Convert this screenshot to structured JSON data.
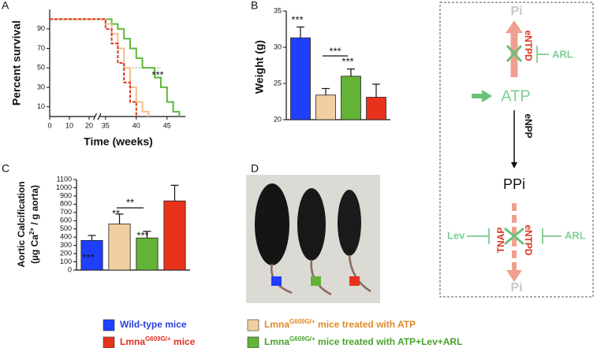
{
  "chart_data": [
    {
      "type": "step",
      "label": "A",
      "ylabel": "Percent survival",
      "xlabel": "Time (weeks)",
      "xlim": [
        0,
        48
      ],
      "xbreak": [
        23,
        34
      ],
      "xticks": [
        0,
        10,
        20,
        35,
        40,
        45
      ],
      "ylim": [
        0,
        110
      ],
      "yticks": [
        10,
        30,
        50,
        70,
        90
      ],
      "series": [
        {
          "color": "#5cb83a",
          "dashed": false,
          "x": [
            0,
            36,
            37,
            38,
            39,
            40,
            41,
            42,
            43,
            44,
            45,
            46,
            47
          ],
          "values": [
            100,
            95,
            90,
            80,
            70,
            60,
            50,
            50,
            40,
            30,
            15,
            5,
            0
          ]
        },
        {
          "color": "#eec08a",
          "dashed": false,
          "x": [
            0,
            35,
            36,
            37,
            38,
            39,
            40,
            41,
            42
          ],
          "values": [
            100,
            95,
            85,
            70,
            50,
            30,
            15,
            5,
            0
          ]
        },
        {
          "color": "#e0321e",
          "dashed": true,
          "x": [
            0,
            35,
            36,
            37,
            38,
            39,
            40
          ],
          "values": [
            100,
            90,
            75,
            55,
            35,
            15,
            0
          ]
        }
      ],
      "annotations": [
        "***"
      ]
    },
    {
      "type": "bar",
      "label": "B",
      "ylabel": "Weight (g)",
      "ylim": [
        20,
        35
      ],
      "yticks": [
        20,
        25,
        30,
        35
      ],
      "values": [
        31.3,
        23.4,
        26.0,
        23.1
      ],
      "errors": [
        1.5,
        0.9,
        1.0,
        1.8
      ],
      "colors": [
        "#1f3fff",
        "#f2cfa0",
        "#62b336",
        "#e8321c"
      ],
      "annotations": [
        "***",
        "***",
        "***"
      ]
    },
    {
      "type": "bar",
      "label": "C",
      "ylabel": "Aortic Calcification",
      "ylabel_unit": {
        "pre": "(µg Ca",
        "sup": "2+",
        "post": " / g aorta)"
      },
      "ylim": [
        0,
        1100
      ],
      "yticks": [
        0,
        100,
        200,
        300,
        400,
        500,
        600,
        700,
        800,
        900,
        1000,
        1100
      ],
      "values": [
        360,
        560,
        390,
        840
      ],
      "errors": [
        60,
        120,
        80,
        190
      ],
      "colors": [
        "#1f3fff",
        "#f2cfa0",
        "#62b336",
        "#e8321c"
      ],
      "annotations": [
        "***",
        "**",
        "***",
        "**"
      ]
    }
  ],
  "photo": {
    "label": "D"
  },
  "diagram": {
    "top_product": "Pi",
    "top_enzyme": "eNTPD",
    "top_inhibitor": "ARL",
    "substrate": "ATP",
    "enzyme": "eNPP",
    "product": "PPi",
    "inhibitor_left": "Lev",
    "bottom_enzyme_left": "TNAP",
    "bottom_enzyme_right": "eNTPD",
    "inhibitor_right": "ARL",
    "bottom_product": "Pi"
  },
  "legend": [
    {
      "text": "Wild-type mice",
      "color": "#2a3fe0",
      "swatch": "#1f3fff"
    },
    {
      "text": "Lmna",
      "sup": "G609G/+",
      "tail": " mice",
      "color": "#e0321e",
      "swatch": "#e8321c"
    },
    {
      "text": "Lmna",
      "sup": "G609G/+",
      "tail": " mice treated with ATP",
      "color": "#e08a2c",
      "swatch": "#f2cfa0"
    },
    {
      "text": "Lmna",
      "sup": "G609G/+",
      "tail": " mice treated with ATP+Lev+ARL",
      "color": "#4aa02c",
      "swatch": "#62b336"
    }
  ]
}
